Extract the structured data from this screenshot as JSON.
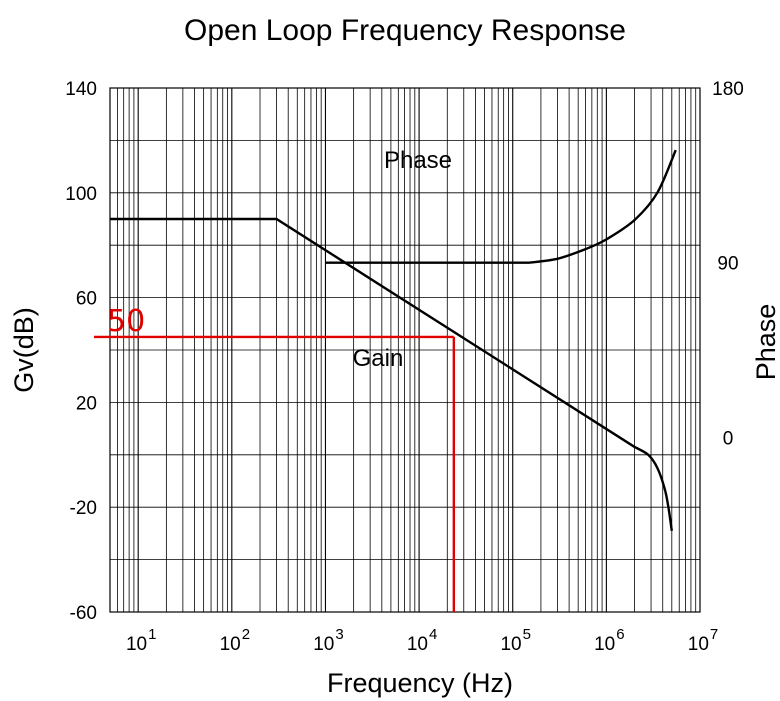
{
  "chart_data": {
    "type": "line",
    "title": "Open Loop Frequency Response",
    "xlabel": "Frequency (Hz)",
    "ylabel": "Gv(dB)",
    "y2label": "Phase",
    "xscale": "log",
    "xlim": [
      5,
      10000000
    ],
    "ylim": [
      -60,
      140
    ],
    "y2lim": [
      -90,
      180
    ],
    "x_ticks": [
      {
        "value": 10,
        "base": "10",
        "exp": "1"
      },
      {
        "value": 100,
        "base": "10",
        "exp": "2"
      },
      {
        "value": 1000,
        "base": "10",
        "exp": "3"
      },
      {
        "value": 10000,
        "base": "10",
        "exp": "4"
      },
      {
        "value": 100000,
        "base": "10",
        "exp": "5"
      },
      {
        "value": 1000000,
        "base": "10",
        "exp": "6"
      },
      {
        "value": 10000000,
        "base": "10",
        "exp": "7"
      }
    ],
    "y_ticks": [
      "140",
      "100",
      "60",
      "20",
      "-20",
      "-60"
    ],
    "y2_ticks": [
      {
        "value": 180,
        "label": "180"
      },
      {
        "value": 90,
        "label": "90"
      },
      {
        "value": 0,
        "label": "0"
      }
    ],
    "grid": true,
    "series": [
      {
        "name": "Gain",
        "axis": "left",
        "x": [
          5,
          300,
          2000000,
          2800000,
          3500000,
          4200000,
          4600000,
          5000000
        ],
        "y": [
          90,
          90,
          3,
          0,
          -5,
          -13,
          -20,
          -29
        ]
      },
      {
        "name": "Phase",
        "axis": "right",
        "x": [
          1000,
          150000,
          300000,
          600000,
          1000000,
          2000000,
          3500000,
          5500000
        ],
        "y": [
          90,
          90,
          92,
          97,
          102,
          112,
          126,
          148
        ]
      }
    ],
    "annotations": {
      "gain_label": "Gain",
      "phase_label": "Phase",
      "marker": {
        "label": "50",
        "frequency": 23500,
        "gain_db": 45
      }
    }
  }
}
